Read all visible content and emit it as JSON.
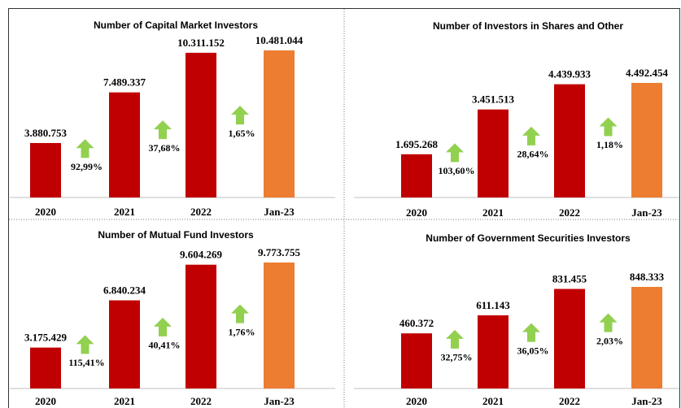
{
  "chart_data": [
    {
      "type": "bar",
      "title": "Number of Capital Market Investors",
      "categories": [
        "2020",
        "2021",
        "2022",
        "Jan-23"
      ],
      "values": [
        3880753,
        7489337,
        10311152,
        10481044
      ],
      "value_labels": [
        "3.880.753",
        "7.489.337",
        "10.311.152",
        "10.481.044"
      ],
      "colors": [
        "#c00000",
        "#c00000",
        "#c00000",
        "#ed7d31"
      ],
      "annotations": [
        "92,99%",
        "37,68%",
        "1,65%"
      ]
    },
    {
      "type": "bar",
      "title": "Number of Investors in Shares and Other",
      "categories": [
        "2020",
        "2021",
        "2022",
        "Jan-23"
      ],
      "values": [
        1695268,
        3451513,
        4439933,
        4492454
      ],
      "value_labels": [
        "1.695.268",
        "3.451.513",
        "4.439.933",
        "4.492.454"
      ],
      "colors": [
        "#c00000",
        "#c00000",
        "#c00000",
        "#ed7d31"
      ],
      "annotations": [
        "103,60%",
        "28,64%",
        "1,18%"
      ]
    },
    {
      "type": "bar",
      "title": "Number of Mutual Fund Investors",
      "categories": [
        "2020",
        "2021",
        "2022",
        "Jan-23"
      ],
      "values": [
        3175429,
        6840234,
        9604269,
        9773755
      ],
      "value_labels": [
        "3.175.429",
        "6.840.234",
        "9.604.269",
        "9.773.755"
      ],
      "colors": [
        "#c00000",
        "#c00000",
        "#c00000",
        "#ed7d31"
      ],
      "annotations": [
        "115,41%",
        "40,41%",
        "1,76%"
      ]
    },
    {
      "type": "bar",
      "title": "Number of Government Securities Investors",
      "categories": [
        "2020",
        "2021",
        "2022",
        "Jan-23"
      ],
      "values": [
        460372,
        611143,
        831455,
        848333
      ],
      "value_labels": [
        "460.372",
        "611.143",
        "831.455",
        "848.333"
      ],
      "colors": [
        "#c00000",
        "#c00000",
        "#c00000",
        "#ed7d31"
      ],
      "annotations": [
        "32,75%",
        "36,05%",
        "2,03%"
      ]
    }
  ]
}
